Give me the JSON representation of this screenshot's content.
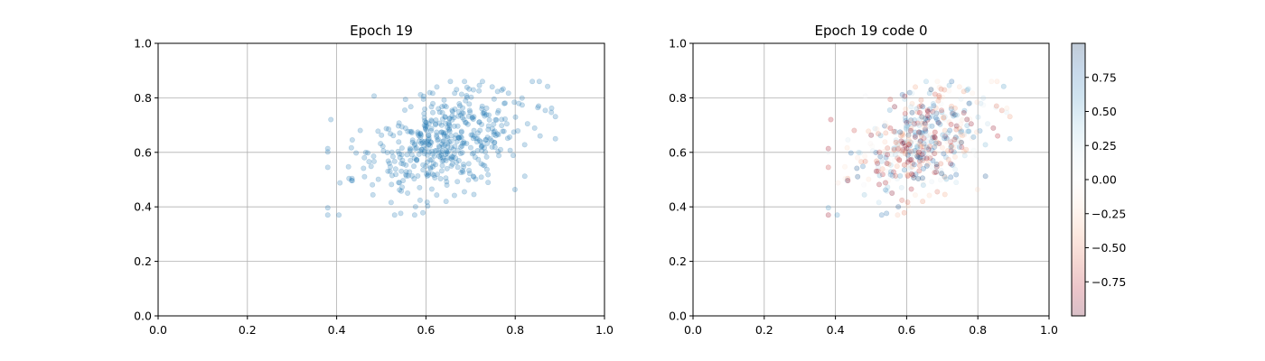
{
  "chart_data": [
    {
      "type": "scatter",
      "title": "Epoch 19",
      "xlim": [
        0.0,
        1.0
      ],
      "ylim": [
        0.0,
        1.0
      ],
      "xticks": [
        "0.0",
        "0.2",
        "0.4",
        "0.6",
        "0.8",
        "1.0"
      ],
      "yticks": [
        "0.0",
        "0.2",
        "0.4",
        "0.6",
        "0.8",
        "1.0"
      ],
      "grid": true,
      "color": "#1f77b4",
      "alpha": 0.25,
      "point_count": 480,
      "cluster": {
        "x_mean": 0.63,
        "x_std": 0.095,
        "y_mean": 0.635,
        "y_std": 0.1,
        "correlation": 0.4
      },
      "x_range": [
        0.38,
        0.89
      ],
      "y_range": [
        0.37,
        0.86
      ]
    },
    {
      "type": "scatter",
      "title": "Epoch 19 code 0",
      "xlim": [
        0.0,
        1.0
      ],
      "ylim": [
        0.0,
        1.0
      ],
      "xticks": [
        "0.0",
        "0.2",
        "0.4",
        "0.6",
        "0.8",
        "1.0"
      ],
      "yticks": [
        "0.0",
        "0.2",
        "0.4",
        "0.6",
        "0.8",
        "1.0"
      ],
      "grid": true,
      "alpha": 0.25,
      "colormap": "RdBu",
      "colorbar": {
        "range": [
          -1.0,
          1.0
        ],
        "ticks": [
          "0.75",
          "0.50",
          "0.25",
          "0.00",
          "−0.25",
          "−0.50",
          "−0.75"
        ],
        "tick_values": [
          0.75,
          0.5,
          0.25,
          0.0,
          -0.25,
          -0.5,
          -0.75
        ],
        "colors": [
          "#67001f",
          "#b2182b",
          "#d6604d",
          "#f4a582",
          "#fddbc7",
          "#f7f7f7",
          "#d1e5f0",
          "#92c5de",
          "#4393c3",
          "#2166ac",
          "#053061"
        ]
      }
    }
  ]
}
